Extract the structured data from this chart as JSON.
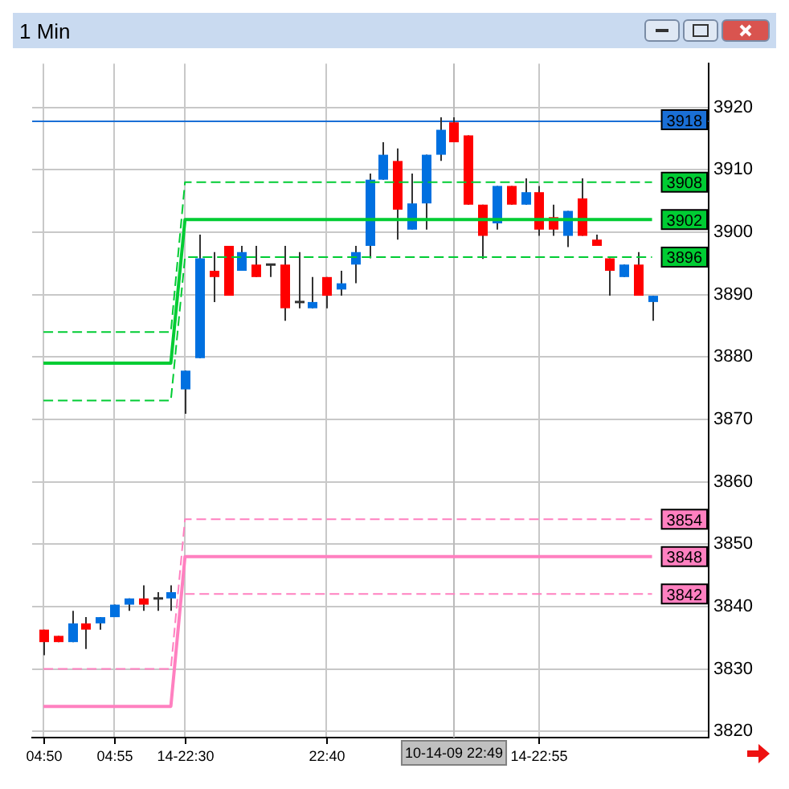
{
  "chart_data": {
    "type": "candlestick",
    "title": "1 Min",
    "categories": [
      "04:50",
      null,
      null,
      null,
      null,
      "04:55",
      null,
      null,
      null,
      null,
      "14-22:30",
      null,
      null,
      null,
      null,
      null,
      null,
      null,
      null,
      null,
      "22:40",
      null,
      null,
      null,
      null,
      null,
      null,
      null,
      null,
      "10-14-09 22:49",
      null,
      null,
      null,
      null,
      null,
      "14-22:55",
      null,
      null,
      null,
      null,
      null,
      null,
      null,
      null
    ],
    "ohlc": [
      [
        3836.3,
        3836.3,
        3832.2,
        3834.3
      ],
      [
        3835.3,
        3835.3,
        3834.3,
        3834.3
      ],
      [
        3834.3,
        3839.3,
        3834.3,
        3837.3
      ],
      [
        3837.3,
        3838.3,
        3833.2,
        3836.3
      ],
      [
        3837.3,
        3838.3,
        3836.3,
        3838.3
      ],
      [
        3838.3,
        3840.3,
        3838.3,
        3840.3
      ],
      [
        3840.3,
        3841.3,
        3839.3,
        3841.3
      ],
      [
        3841.3,
        3843.4,
        3839.3,
        3840.3
      ],
      [
        3841.3,
        3842.3,
        3839.3,
        3841.3
      ],
      [
        3841.3,
        3843.4,
        3839.3,
        3842.3
      ],
      [
        3874.8,
        3877.8,
        3870.9,
        3877.8
      ],
      [
        3879.8,
        3899.6,
        3879.8,
        3895.8
      ],
      [
        3893.8,
        3896.8,
        3888.8,
        3892.8
      ],
      [
        3897.8,
        3897.8,
        3889.8,
        3889.8
      ],
      [
        3893.8,
        3897.8,
        3893.8,
        3896.8
      ],
      [
        3894.8,
        3897.8,
        3892.8,
        3892.8
      ],
      [
        3894.8,
        3894.8,
        3892.8,
        3894.8
      ],
      [
        3894.8,
        3897.8,
        3885.8,
        3887.8
      ],
      [
        3888.8,
        3896.8,
        3887.8,
        3888.8
      ],
      [
        3887.8,
        3892.8,
        3887.8,
        3888.8
      ],
      [
        3892.8,
        3892.8,
        3887.8,
        3889.8
      ],
      [
        3890.8,
        3893.8,
        3889.8,
        3891.8
      ],
      [
        3894.8,
        3897.8,
        3891.8,
        3896.8
      ],
      [
        3897.8,
        3909.4,
        3895.8,
        3908.4
      ],
      [
        3908.4,
        3914.4,
        3908.4,
        3912.4
      ],
      [
        3911.4,
        3913.4,
        3898.8,
        3903.6
      ],
      [
        3900.4,
        3909.4,
        3900.4,
        3904.6
      ],
      [
        3904.6,
        3912.4,
        3900.4,
        3912.4
      ],
      [
        3912.4,
        3918.4,
        3911.4,
        3916.4
      ],
      [
        3917.6,
        3918.4,
        3914.4,
        3914.4
      ],
      [
        3915.5,
        3915.5,
        3904.4,
        3904.4
      ],
      [
        3904.4,
        3904.4,
        3895.7,
        3899.4
      ],
      [
        3901.4,
        3907.4,
        3900.4,
        3907.4
      ],
      [
        3907.4,
        3907.4,
        3904.4,
        3904.4
      ],
      [
        3904.4,
        3908.6,
        3904.4,
        3906.4
      ],
      [
        3906.4,
        3907.4,
        3899.4,
        3900.4
      ],
      [
        3902.4,
        3904.4,
        3899.4,
        3900.4
      ],
      [
        3899.4,
        3903.4,
        3897.6,
        3903.4
      ],
      [
        3905.4,
        3908.6,
        3899.4,
        3899.4
      ],
      [
        3898.8,
        3899.6,
        3897.8,
        3897.8
      ],
      [
        3895.8,
        3895.8,
        3889.8,
        3893.8
      ],
      [
        3892.8,
        3894.8,
        3892.8,
        3894.8
      ],
      [
        3894.8,
        3896.8,
        3889.8,
        3889.8
      ],
      [
        3888.8,
        3889.8,
        3885.8,
        3889.8
      ]
    ],
    "colors": [
      "#ff0000",
      "#ff0000",
      "#0070e0",
      "#ff0000",
      "#0070e0",
      "#0070e0",
      "#0070e0",
      "#ff0000",
      "#333333",
      "#0070e0",
      "#0070e0",
      "#0070e0",
      "#ff0000",
      "#ff0000",
      "#0070e0",
      "#ff0000",
      "#333333",
      "#ff0000",
      "#333333",
      "#0070e0",
      "#ff0000",
      "#0070e0",
      "#0070e0",
      "#0070e0",
      "#0070e0",
      "#ff0000",
      "#0070e0",
      "#0070e0",
      "#0070e0",
      "#ff0000",
      "#ff0000",
      "#ff0000",
      "#0070e0",
      "#ff0000",
      "#0070e0",
      "#ff0000",
      "#ff0000",
      "#0070e0",
      "#ff0000",
      "#ff0000",
      "#ff0000",
      "#0070e0",
      "#ff0000",
      "#0070e0"
    ],
    "series": [
      {
        "type": "line",
        "color": "#00cc33",
        "line_style": "solid",
        "values": [
          3879,
          3879,
          3879,
          3879,
          3879,
          3879,
          3879,
          3879,
          3879,
          3879,
          3902,
          3902,
          3902,
          3902,
          3902,
          3902,
          3902,
          3902,
          3902,
          3902,
          3902,
          3902,
          3902,
          3902,
          3902,
          3902,
          3902,
          3902,
          3902,
          3902,
          3902,
          3902,
          3902,
          3902,
          3902,
          3902,
          3902,
          3902,
          3902,
          3902,
          3902,
          3902,
          3902,
          3902
        ],
        "value_labels": [
          null,
          null,
          null,
          null,
          null,
          null,
          null,
          null,
          null,
          null,
          null,
          null,
          null,
          null,
          null,
          null,
          null,
          null,
          null,
          null,
          null,
          null,
          null,
          null,
          null,
          null,
          null,
          null,
          null,
          null,
          null,
          null,
          null,
          null,
          null,
          null,
          null,
          null,
          null,
          null,
          null,
          null,
          null,
          "3902"
        ]
      },
      {
        "type": "line",
        "color": "#00cc33",
        "line_style": "dashed",
        "values": [
          3884,
          3884,
          3884,
          3884,
          3884,
          3884,
          3884,
          3884,
          3884,
          3884,
          3908,
          3908,
          3908,
          3908,
          3908,
          3908,
          3908,
          3908,
          3908,
          3908,
          3908,
          3908,
          3908,
          3908,
          3908,
          3908,
          3908,
          3908,
          3908,
          3908,
          3908,
          3908,
          3908,
          3908,
          3908,
          3908,
          3908,
          3908,
          3908,
          3908,
          3908,
          3908,
          3908,
          3908
        ],
        "value_labels": [
          null,
          null,
          null,
          null,
          null,
          null,
          null,
          null,
          null,
          null,
          null,
          null,
          null,
          null,
          null,
          null,
          null,
          null,
          null,
          null,
          null,
          null,
          null,
          null,
          null,
          null,
          null,
          null,
          null,
          null,
          null,
          null,
          null,
          null,
          null,
          null,
          null,
          null,
          null,
          null,
          null,
          null,
          null,
          "3908"
        ]
      },
      {
        "type": "line",
        "color": "#00cc33",
        "line_style": "dashed",
        "values": [
          3873,
          3873,
          3873,
          3873,
          3873,
          3873,
          3873,
          3873,
          3873,
          3873,
          3896,
          3896,
          3896,
          3896,
          3896,
          3896,
          3896,
          3896,
          3896,
          3896,
          3896,
          3896,
          3896,
          3896,
          3896,
          3896,
          3896,
          3896,
          3896,
          3896,
          3896,
          3896,
          3896,
          3896,
          3896,
          3896,
          3896,
          3896,
          3896,
          3896,
          3896,
          3896,
          3896,
          3896
        ],
        "value_labels": [
          null,
          null,
          null,
          null,
          null,
          null,
          null,
          null,
          null,
          null,
          null,
          null,
          null,
          null,
          null,
          null,
          null,
          null,
          null,
          null,
          null,
          null,
          null,
          null,
          null,
          null,
          null,
          null,
          null,
          null,
          null,
          null,
          null,
          null,
          null,
          null,
          null,
          null,
          null,
          null,
          null,
          null,
          null,
          "3896"
        ]
      },
      {
        "type": "line",
        "color": "#ff80c0",
        "line_style": "solid",
        "values": [
          3824,
          3824,
          3824,
          3824,
          3824,
          3824,
          3824,
          3824,
          3824,
          3824,
          3848,
          3848,
          3848,
          3848,
          3848,
          3848,
          3848,
          3848,
          3848,
          3848,
          3848,
          3848,
          3848,
          3848,
          3848,
          3848,
          3848,
          3848,
          3848,
          3848,
          3848,
          3848,
          3848,
          3848,
          3848,
          3848,
          3848,
          3848,
          3848,
          3848,
          3848,
          3848,
          3848,
          3848
        ],
        "value_labels": [
          null,
          null,
          null,
          null,
          null,
          null,
          null,
          null,
          null,
          null,
          null,
          null,
          null,
          null,
          null,
          null,
          null,
          null,
          null,
          null,
          null,
          null,
          null,
          null,
          null,
          null,
          null,
          null,
          null,
          null,
          null,
          null,
          null,
          null,
          null,
          null,
          null,
          null,
          null,
          null,
          null,
          null,
          null,
          "3848"
        ]
      },
      {
        "type": "line",
        "color": "#ff80c0",
        "line_style": "dashed",
        "values": [
          3830,
          3830,
          3830,
          3830,
          3830,
          3830,
          3830,
          3830,
          3830,
          3830,
          3854,
          3854,
          3854,
          3854,
          3854,
          3854,
          3854,
          3854,
          3854,
          3854,
          3854,
          3854,
          3854,
          3854,
          3854,
          3854,
          3854,
          3854,
          3854,
          3854,
          3854,
          3854,
          3854,
          3854,
          3854,
          3854,
          3854,
          3854,
          3854,
          3854,
          3854,
          3854,
          3854,
          3854
        ],
        "value_labels": [
          null,
          null,
          null,
          null,
          null,
          null,
          null,
          null,
          null,
          null,
          null,
          null,
          null,
          null,
          null,
          null,
          null,
          null,
          null,
          null,
          null,
          null,
          null,
          null,
          null,
          null,
          null,
          null,
          null,
          null,
          null,
          null,
          null,
          null,
          null,
          null,
          null,
          null,
          null,
          null,
          null,
          null,
          null,
          "3854"
        ]
      },
      {
        "type": "line",
        "color": "#ff80c0",
        "line_style": "dashed",
        "values": [
          null,
          null,
          null,
          null,
          null,
          null,
          null,
          null,
          null,
          null,
          3842,
          3842,
          3842,
          3842,
          3842,
          3842,
          3842,
          3842,
          3842,
          3842,
          3842,
          3842,
          3842,
          3842,
          3842,
          3842,
          3842,
          3842,
          3842,
          3842,
          3842,
          3842,
          3842,
          3842,
          3842,
          3842,
          3842,
          3842,
          3842,
          3842,
          3842,
          3842,
          3842,
          3842
        ],
        "value_labels": [
          null,
          null,
          null,
          null,
          null,
          null,
          null,
          null,
          null,
          null,
          null,
          null,
          null,
          null,
          null,
          null,
          null,
          null,
          null,
          null,
          null,
          null,
          null,
          null,
          null,
          null,
          null,
          null,
          null,
          null,
          null,
          null,
          null,
          null,
          null,
          null,
          null,
          null,
          null,
          null,
          null,
          null,
          null,
          "3842"
        ]
      }
    ],
    "ref_lines": [
      {
        "axis": "y",
        "value": 3918,
        "label": "3918",
        "color": "#1a6fd6"
      },
      {
        "axis": "x",
        "value": "10-14-09 22:49",
        "color": "#bbbbbb"
      }
    ],
    "ylim": [
      3819,
      3927
    ],
    "yticks": [
      3820,
      3830,
      3840,
      3850,
      3860,
      3870,
      3880,
      3890,
      3900,
      3910,
      3920
    ],
    "grid": true,
    "legend": false
  }
}
